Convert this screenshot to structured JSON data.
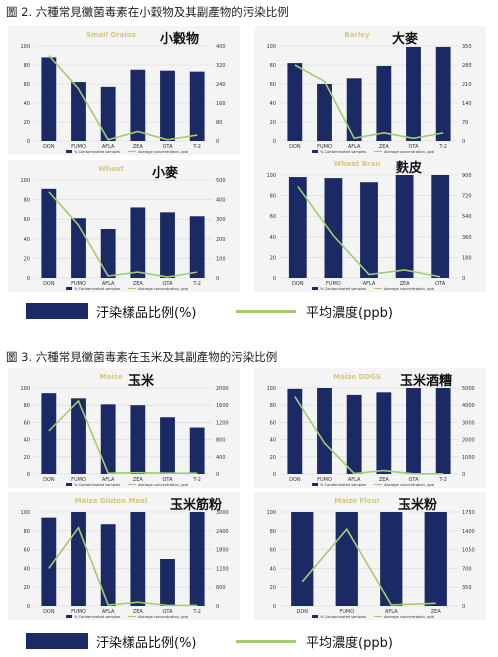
{
  "figures": [
    {
      "title": "圖 2.  六種常見黴菌毒素在小穀物及其副產物的污染比例",
      "legend": {
        "bar_label": "汙染樣品比例(%)",
        "line_label": "平均濃度(ppb)"
      }
    },
    {
      "title": "圖 3.  六種常見黴菌毒素在玉米及其副產物的污染比例",
      "legend": {
        "bar_label": "汙染樣品比例(%)",
        "line_label": "平均濃度(ppb)"
      }
    }
  ],
  "colors": {
    "bar": "#1b2a64",
    "line": "#a3cc6f",
    "title_text": "#d4c87a",
    "panel_bg": "#f4f4f4"
  },
  "chart_data": [
    {
      "type": "bar",
      "title": "Small Grains",
      "subtitle": "小穀物",
      "categories": [
        "DON",
        "FUMO",
        "AFLA",
        "ZEA",
        "OTA",
        "T-2"
      ],
      "series": [
        {
          "name": "% Contaminated samples",
          "type": "bar",
          "axis": "left",
          "values": [
            88,
            62,
            57,
            75,
            74,
            73
          ]
        },
        {
          "name": "Average concentration, ppb",
          "type": "line",
          "axis": "right",
          "values": [
            360,
            220,
            5,
            40,
            5,
            25
          ]
        }
      ],
      "ylim": [
        0,
        100
      ],
      "yticks": [
        0,
        20,
        40,
        60,
        80,
        100
      ],
      "y2lim": [
        0,
        400
      ],
      "y2ticks": [
        0,
        80,
        160,
        240,
        320,
        400
      ],
      "grid": true
    },
    {
      "type": "bar",
      "title": "Barley",
      "subtitle": "大麥",
      "categories": [
        "DON",
        "FUMO",
        "AFLA",
        "ZEA",
        "OTA",
        "T-2"
      ],
      "series": [
        {
          "name": "% Contaminated samples",
          "type": "bar",
          "axis": "left",
          "values": [
            82,
            60,
            66,
            79,
            99,
            99
          ]
        },
        {
          "name": "Average concentration, ppb",
          "type": "line",
          "axis": "right",
          "values": [
            280,
            220,
            10,
            30,
            10,
            30
          ]
        }
      ],
      "ylim": [
        0,
        100
      ],
      "yticks": [
        0,
        20,
        40,
        60,
        80,
        100
      ],
      "y2lim": [
        0,
        350
      ],
      "y2ticks": [
        0,
        70,
        140,
        210,
        280,
        350
      ],
      "grid": true
    },
    {
      "type": "bar",
      "title": "Wheat",
      "subtitle": "小麥",
      "categories": [
        "DON",
        "FUMO",
        "AFLA",
        "ZEA",
        "OTA",
        "T-2"
      ],
      "series": [
        {
          "name": "% Contaminated samples",
          "type": "bar",
          "axis": "left",
          "values": [
            91,
            61,
            50,
            72,
            67,
            63
          ]
        },
        {
          "name": "Average concentration, ppb",
          "type": "line",
          "axis": "right",
          "values": [
            440,
            270,
            10,
            30,
            5,
            30
          ]
        }
      ],
      "ylim": [
        0,
        100
      ],
      "yticks": [
        0,
        20,
        40,
        60,
        80,
        100
      ],
      "y2lim": [
        0,
        500
      ],
      "y2ticks": [
        0,
        100,
        200,
        300,
        400,
        500
      ],
      "grid": true
    },
    {
      "type": "bar",
      "title": "Wheat Bran",
      "subtitle": "麩皮",
      "categories": [
        "DON",
        "FUMO",
        "AFLA",
        "ZEA",
        "OTA"
      ],
      "series": [
        {
          "name": "% Contaminated samples",
          "type": "bar",
          "axis": "left",
          "values": [
            98,
            97,
            93,
            100,
            100
          ]
        },
        {
          "name": "Average concentration, ppb",
          "type": "line",
          "axis": "right",
          "values": [
            800,
            370,
            30,
            70,
            10
          ]
        }
      ],
      "ylim": [
        0,
        100
      ],
      "yticks": [
        0,
        20,
        40,
        60,
        80,
        100
      ],
      "y2lim": [
        0,
        900
      ],
      "y2ticks": [
        0,
        180,
        360,
        540,
        720,
        900
      ],
      "grid": true
    },
    {
      "type": "bar",
      "title": "Maize",
      "subtitle": "玉米",
      "categories": [
        "DON",
        "FUMO",
        "AFLA",
        "ZEA",
        "OTA",
        "T-2"
      ],
      "series": [
        {
          "name": "% Contaminated samples",
          "type": "bar",
          "axis": "left",
          "values": [
            94,
            88,
            81,
            80,
            66,
            54
          ]
        },
        {
          "name": "Average concentration, ppb",
          "type": "line",
          "axis": "right",
          "values": [
            1000,
            1700,
            20,
            30,
            20,
            20
          ]
        }
      ],
      "ylim": [
        0,
        100
      ],
      "yticks": [
        0,
        20,
        40,
        60,
        80,
        100
      ],
      "y2lim": [
        0,
        2000
      ],
      "y2ticks": [
        0,
        400,
        800,
        1200,
        1600,
        2000
      ],
      "grid": true
    },
    {
      "type": "bar",
      "title": "Maize DDGS",
      "subtitle": "玉米酒糟",
      "categories": [
        "DON",
        "FUMO",
        "AFLA",
        "ZEA",
        "OTA",
        "T-2"
      ],
      "series": [
        {
          "name": "% Contaminated samples",
          "type": "bar",
          "axis": "left",
          "values": [
            99,
            100,
            92,
            95,
            100,
            100
          ]
        },
        {
          "name": "Average concentration, ppb",
          "type": "line",
          "axis": "right",
          "values": [
            4500,
            1800,
            30,
            200,
            10,
            10
          ]
        }
      ],
      "ylim": [
        0,
        100
      ],
      "yticks": [
        0,
        20,
        40,
        60,
        80,
        100
      ],
      "y2lim": [
        0,
        5000
      ],
      "y2ticks": [
        0,
        1000,
        2000,
        3000,
        4000,
        5000
      ],
      "grid": true
    },
    {
      "type": "bar",
      "title": "Maize Gluten Meal",
      "subtitle": "玉米筋粉",
      "categories": [
        "DON",
        "FUMO",
        "AFLA",
        "ZEA",
        "OTA",
        "T-2"
      ],
      "series": [
        {
          "name": "% Contaminated samples",
          "type": "bar",
          "axis": "left",
          "values": [
            94,
            100,
            87,
            100,
            50,
            100
          ]
        },
        {
          "name": "Average concentration, ppb",
          "type": "line",
          "axis": "right",
          "values": [
            1200,
            2500,
            30,
            120,
            20,
            20
          ]
        }
      ],
      "ylim": [
        0,
        100
      ],
      "yticks": [
        0,
        20,
        40,
        60,
        80,
        100
      ],
      "y2lim": [
        0,
        3000
      ],
      "y2ticks": [
        0,
        600,
        1200,
        1800,
        2400,
        3000
      ],
      "grid": true
    },
    {
      "type": "bar",
      "title": "Maize Flour",
      "subtitle": "玉米粉",
      "categories": [
        "DON",
        "FUMO",
        "AFLA",
        "ZEA"
      ],
      "series": [
        {
          "name": "% Contaminated samples",
          "type": "bar",
          "axis": "left",
          "values": [
            100,
            100,
            100,
            100
          ]
        },
        {
          "name": "Average concentration, ppb",
          "type": "line",
          "axis": "right",
          "values": [
            450,
            1430,
            20,
            50
          ]
        }
      ],
      "ylim": [
        0,
        100
      ],
      "yticks": [
        0,
        20,
        40,
        60,
        80,
        100
      ],
      "y2lim": [
        0,
        1750
      ],
      "y2ticks": [
        0,
        350,
        700,
        1050,
        1400,
        1750
      ],
      "grid": true
    }
  ]
}
